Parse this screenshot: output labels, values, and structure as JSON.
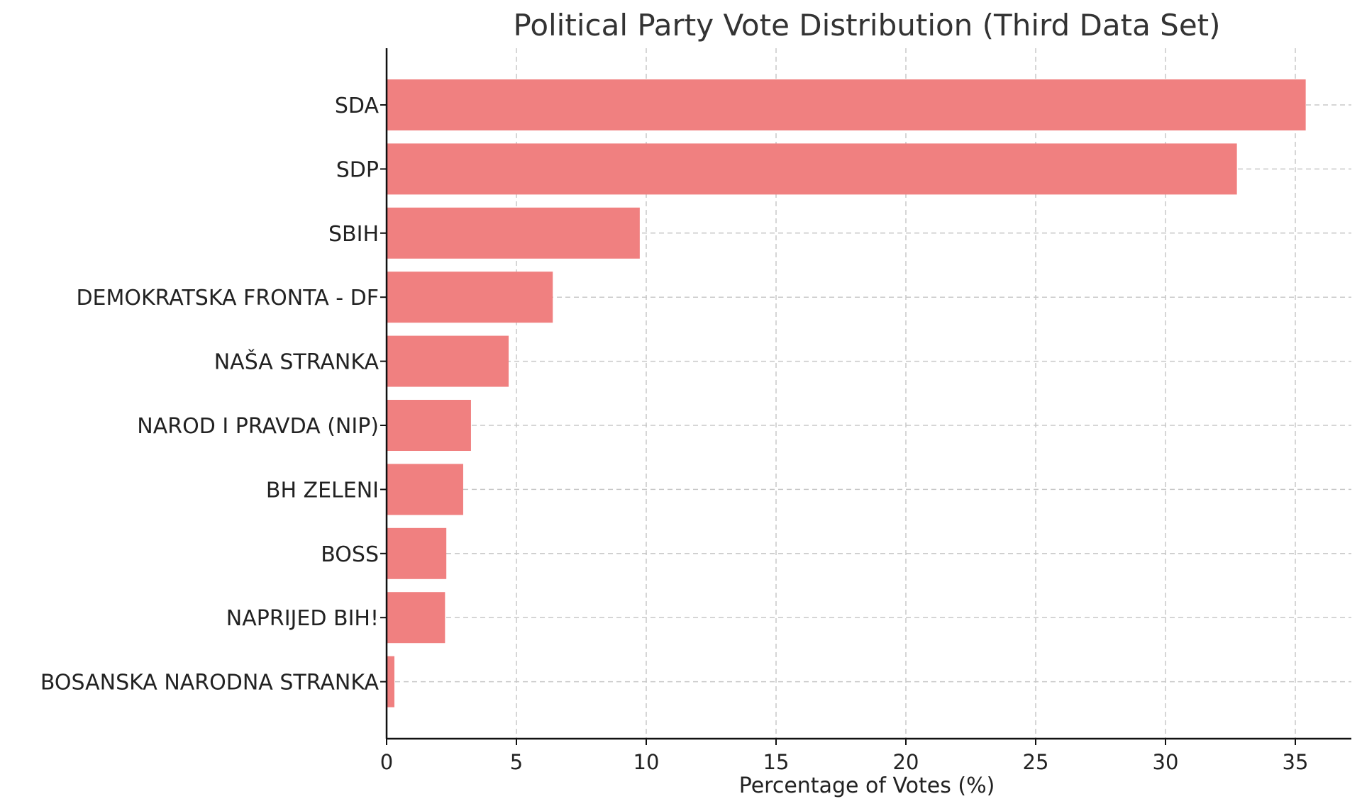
{
  "chart_data": {
    "type": "bar",
    "orientation": "horizontal",
    "title": "Political Party Vote Distribution (Third Data Set)",
    "xlabel": "Percentage of Votes (%)",
    "ylabel": "",
    "categories": [
      "SDA",
      "SDP",
      "SBIH",
      "DEMOKRATSKA FRONTA - DF",
      "NAŠA STRANKA",
      "NAROD I PRAVDA (NIP)",
      "BH ZELENI",
      "BOSS",
      "NAPRIJED BIH!",
      "BOSANSKA NARODNA STRANKA"
    ],
    "values": [
      35.4,
      32.75,
      9.75,
      6.4,
      4.7,
      3.25,
      2.95,
      2.3,
      2.25,
      0.3
    ],
    "xlim": [
      0,
      37.2
    ],
    "xticks": [
      "0",
      "5",
      "10",
      "15",
      "20",
      "25",
      "30",
      "35"
    ],
    "grid": true,
    "bar_color": "#F08080"
  }
}
